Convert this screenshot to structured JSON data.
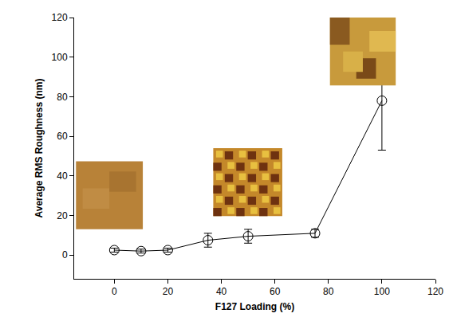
{
  "chart_data": {
    "type": "scatter",
    "x_label": "F127 Loading (%)",
    "y_label": "Average RMS Roughness (nm)",
    "x": [
      0,
      10,
      20,
      35,
      50,
      75,
      100
    ],
    "values": [
      2.5,
      2,
      2.5,
      7.5,
      9.5,
      11,
      78
    ],
    "errors": [
      1,
      1,
      1,
      3.5,
      3.5,
      2,
      25
    ],
    "color": "#000000",
    "marker": "open_circle",
    "line_style": "solid",
    "xlim": [
      -15,
      120
    ],
    "xticks": [
      0,
      20,
      40,
      60,
      80,
      100,
      120
    ],
    "ylim": [
      -12,
      120
    ],
    "yticks": [
      0,
      20,
      40,
      60,
      80,
      100,
      120
    ],
    "grid": false
  }
}
